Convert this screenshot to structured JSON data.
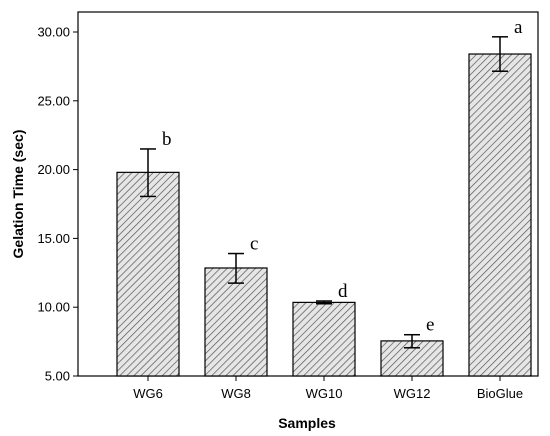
{
  "chart_data": {
    "type": "bar",
    "title": "",
    "xlabel": "Samples",
    "ylabel": "Gelation Time (sec)",
    "categories": [
      "WG6",
      "WG8",
      "WG10",
      "WG12",
      "BioGlue"
    ],
    "values": [
      19.8,
      12.85,
      10.35,
      7.55,
      28.4
    ],
    "error_low": [
      18.05,
      11.75,
      10.25,
      7.05,
      27.15
    ],
    "error_high": [
      21.5,
      13.9,
      10.45,
      8.0,
      29.65
    ],
    "significance_labels": [
      "b",
      "c",
      "d",
      "e",
      "a"
    ],
    "ylim": [
      5.0,
      30.0
    ],
    "yticks": [
      5.0,
      10.0,
      15.0,
      20.0,
      25.0,
      30.0
    ],
    "ytick_labels": [
      "5.00",
      "10.00",
      "15.00",
      "20.00",
      "25.00",
      "30.00"
    ],
    "bar_fill": "hatched",
    "colors": {
      "bar_fill": "#e6e6e6",
      "hatch": "#555555",
      "outline": "#000000"
    },
    "grid": false,
    "legend": "none"
  }
}
